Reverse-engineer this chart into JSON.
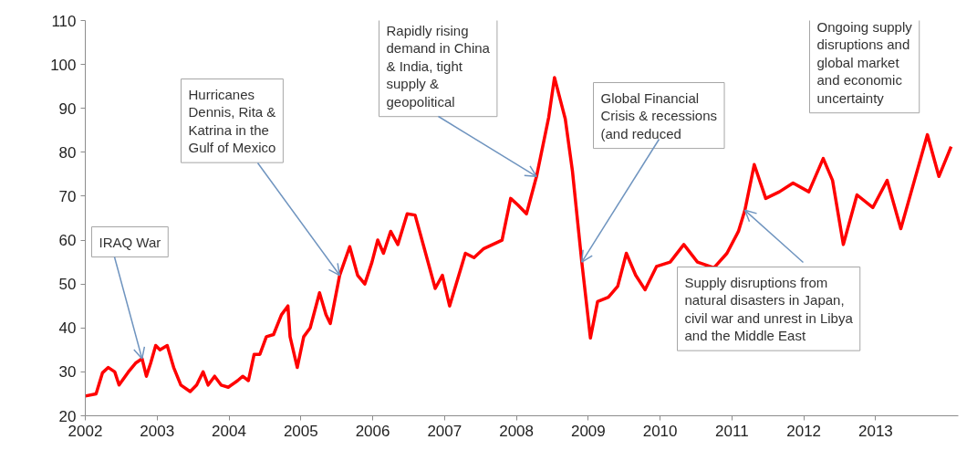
{
  "chart_data": {
    "type": "line",
    "x": [
      2002.0,
      2002.15,
      2002.24,
      2002.32,
      2002.41,
      2002.47,
      2002.6,
      2002.7,
      2002.79,
      2002.85,
      2002.91,
      2002.98,
      2003.04,
      2003.14,
      2003.23,
      2003.33,
      2003.46,
      2003.55,
      2003.64,
      2003.71,
      2003.8,
      2003.89,
      2003.99,
      2004.12,
      2004.19,
      2004.27,
      2004.35,
      2004.43,
      2004.52,
      2004.62,
      2004.73,
      2004.82,
      2004.85,
      2004.95,
      2005.04,
      2005.13,
      2005.26,
      2005.35,
      2005.41,
      2005.54,
      2005.68,
      2005.79,
      2005.89,
      2005.99,
      2006.07,
      2006.15,
      2006.25,
      2006.35,
      2006.48,
      2006.59,
      2006.72,
      2006.87,
      2006.97,
      2007.07,
      2007.29,
      2007.41,
      2007.54,
      2007.8,
      2007.92,
      2008.02,
      2008.14,
      2008.28,
      2008.45,
      2008.53,
      2008.61,
      2008.68,
      2008.78,
      2008.91,
      2009.03,
      2009.13,
      2009.28,
      2009.41,
      2009.53,
      2009.66,
      2009.79,
      2009.95,
      2010.14,
      2010.33,
      2010.52,
      2010.75,
      2010.93,
      2011.09,
      2011.18,
      2011.31,
      2011.47,
      2011.66,
      2011.85,
      2012.07,
      2012.27,
      2012.4,
      2012.55,
      2012.74,
      2012.96,
      2013.16,
      2013.35,
      2013.54,
      2013.72,
      2013.88,
      2014.05
    ],
    "series": [
      {
        "color": "#ff0000",
        "values": [
          24.5,
          25,
          29.8,
          31,
          30,
          27,
          30,
          32,
          33,
          29,
          32,
          36,
          35,
          36,
          31,
          27,
          25.5,
          27,
          30,
          27,
          29,
          27,
          26.5,
          28,
          29,
          28,
          34,
          34,
          38,
          38.5,
          43,
          45,
          38,
          31,
          38,
          40,
          48,
          43,
          41,
          52,
          58.5,
          52,
          50,
          55,
          60,
          57,
          62,
          59,
          66,
          65.7,
          58,
          49,
          52,
          45,
          57,
          56,
          58,
          60,
          69.5,
          68,
          66,
          74.5,
          88,
          97,
          92,
          87.6,
          75.7,
          55,
          37.7,
          46,
          47,
          49.5,
          57,
          52,
          48.7,
          54,
          55,
          59,
          55,
          53.7,
          57,
          62,
          66.8,
          77.2,
          69.5,
          71,
          73,
          71,
          78.6,
          73.6,
          59,
          70.3,
          67.4,
          73.6,
          62.6,
          73.6,
          84,
          74.5,
          81.3
        ]
      }
    ],
    "xlim": [
      2002,
      2014.15
    ],
    "xticks": [
      2002,
      2003,
      2004,
      2005,
      2006,
      2007,
      2008,
      2009,
      2010,
      2011,
      2012,
      2013
    ],
    "ylim": [
      20,
      110
    ],
    "yticks": [
      20,
      30,
      40,
      50,
      60,
      70,
      80,
      90,
      100,
      110
    ],
    "annotations": [
      {
        "text": "IRAQ War",
        "x": 2002.79,
        "y": 33
      },
      {
        "text": "Hurricanes Dennis, Rita & Katrina in the Gulf of Mexico",
        "x": 2005.54,
        "y": 52
      },
      {
        "text": "Rapidly rising demand in China & India, tight supply & geopolitical",
        "x": 2008.28,
        "y": 74.5
      },
      {
        "text": "Global Financial Crisis & recessions (and reduced",
        "x": 2008.91,
        "y": 55
      },
      {
        "text": "Supply disruptions from natural disasters in Japan, civil war and unrest in Libya and the Middle East",
        "x": 2011.18,
        "y": 66.8
      },
      "Ongoing supply disruptions and global market and economic uncertainty"
    ]
  }
}
